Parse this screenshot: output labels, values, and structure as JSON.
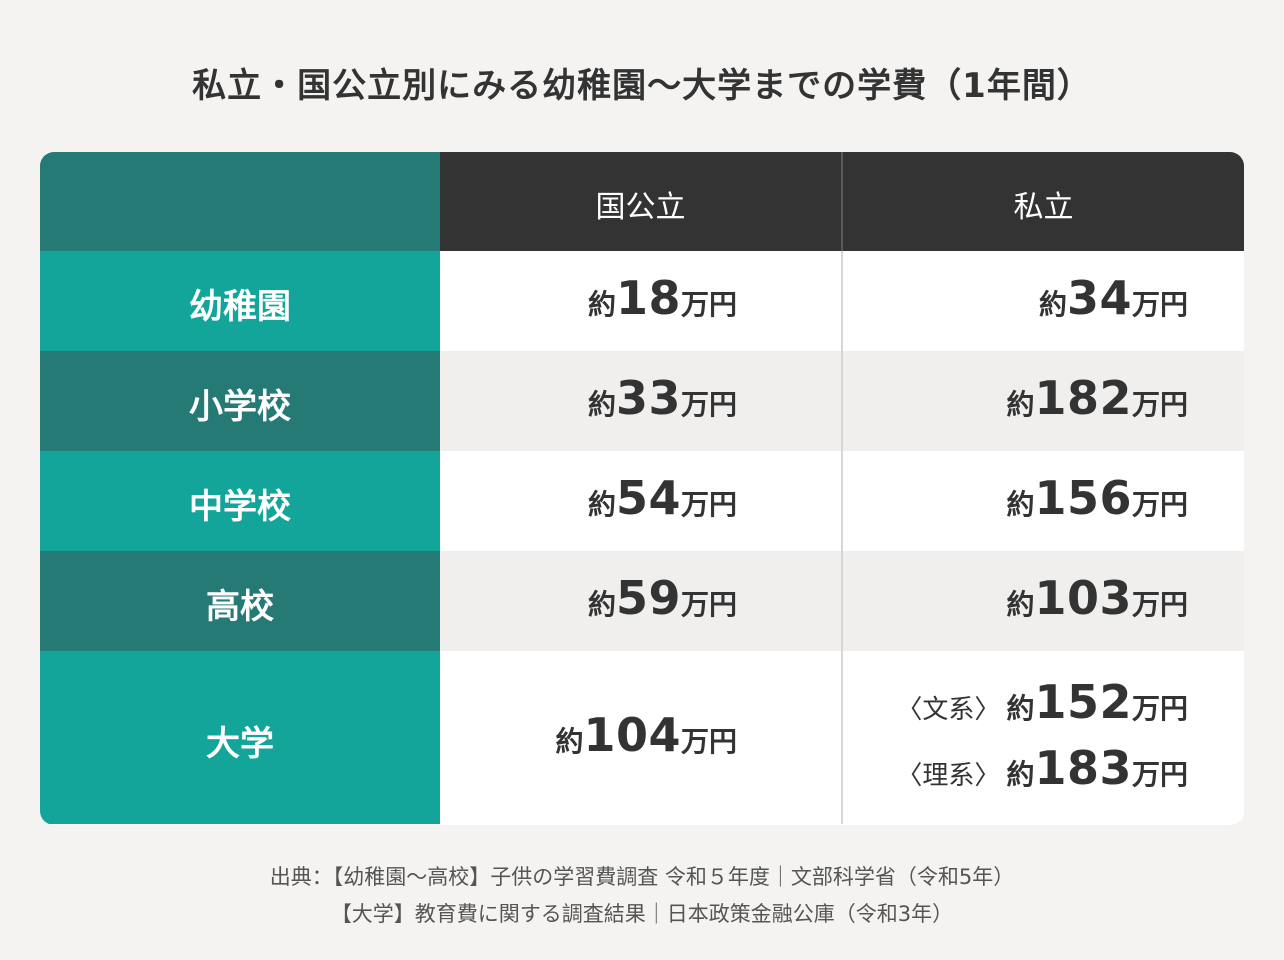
{
  "title": "私立・国公立別にみる幼稚園〜大学までの学費（1年間）",
  "colors": {
    "background": "#f4f3f1",
    "header_dark": "#333333",
    "teal_light": "#14a59a",
    "teal_dark": "#257a76",
    "row_grey": "#f0efed",
    "row_white": "#ffffff",
    "text": "#333333"
  },
  "chart_data": {
    "type": "table",
    "columns": [
      "国公立",
      "私立"
    ],
    "rows": [
      {
        "label": "幼稚園",
        "national_public": {
          "prefix": "約",
          "value": "18",
          "unit": "万円"
        },
        "private": [
          {
            "note": "",
            "prefix": "約",
            "value": "34",
            "unit": "万円"
          }
        ]
      },
      {
        "label": "小学校",
        "national_public": {
          "prefix": "約",
          "value": "33",
          "unit": "万円"
        },
        "private": [
          {
            "note": "",
            "prefix": "約",
            "value": "182",
            "unit": "万円"
          }
        ]
      },
      {
        "label": "中学校",
        "national_public": {
          "prefix": "約",
          "value": "54",
          "unit": "万円"
        },
        "private": [
          {
            "note": "",
            "prefix": "約",
            "value": "156",
            "unit": "万円"
          }
        ]
      },
      {
        "label": "高校",
        "national_public": {
          "prefix": "約",
          "value": "59",
          "unit": "万円"
        },
        "private": [
          {
            "note": "",
            "prefix": "約",
            "value": "103",
            "unit": "万円"
          }
        ]
      },
      {
        "label": "大学",
        "national_public": {
          "prefix": "約",
          "value": "104",
          "unit": "万円"
        },
        "private": [
          {
            "note": "〈文系〉",
            "prefix": "約",
            "value": "152",
            "unit": "万円"
          },
          {
            "note": "〈理系〉",
            "prefix": "約",
            "value": "183",
            "unit": "万円"
          }
        ]
      }
    ]
  },
  "source": {
    "line1": "出典：【幼稚園〜高校】子供の学習費調査 令和５年度｜文部科学省（令和5年）",
    "line2": "【大学】教育費に関する調査結果｜日本政策金融公庫（令和3年）"
  }
}
